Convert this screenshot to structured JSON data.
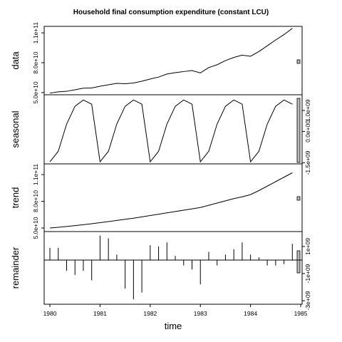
{
  "chart_data": {
    "type": "decomposition",
    "title": "Household final consumption expenditure (constant LCU)",
    "xlabel": "time",
    "x": [
      1980,
      1980.1667,
      1980.3333,
      1980.5,
      1980.6667,
      1980.8333,
      1981,
      1981.1667,
      1981.3333,
      1981.5,
      1981.6667,
      1981.8333,
      1982,
      1982.1667,
      1982.3333,
      1982.5,
      1982.6667,
      1982.8333,
      1983,
      1983.1667,
      1983.3333,
      1983.5,
      1983.6667,
      1983.8333,
      1984,
      1984.1667,
      1984.3333,
      1984.5,
      1984.6667,
      1984.8333
    ],
    "xlim": [
      1979.886,
      1985.028
    ],
    "xticks": [
      1980,
      1981,
      1982,
      1983,
      1984,
      1985
    ],
    "panels": [
      {
        "name": "data",
        "type": "line",
        "axis_side": "left",
        "values": [
          49450000000.0,
          50750000000.0,
          51250000000.0,
          52800000000.0,
          54400000000.0,
          54600000000.0,
          56350000000.0,
          57850000000.0,
          59250000000.0,
          58900000000.0,
          59600000000.0,
          61400000000.0,
          63650000000.0,
          65550000000.0,
          68650000000.0,
          70000000000.0,
          71100000000.0,
          72100000000.0,
          69750000000.0,
          75150000000.0,
          77950000000.0,
          82100000000.0,
          85300000000.0,
          87600000000.0,
          86450000000.0,
          91250000000.0,
          96950000000.0,
          102800000000.0,
          108200000000.0,
          114500000000.0
        ],
        "ylim": [
          47800000000.0,
          116500000000.0
        ],
        "yticks": [
          {
            "value": 50000000000.0,
            "label": "5.0e+10"
          },
          {
            "value": 80000000000.0,
            "label": "8.0e+10"
          },
          {
            "value": 110000000000.0,
            "label": "1.1e+11"
          }
        ]
      },
      {
        "name": "seasonal",
        "type": "line",
        "axis_side": "right",
        "values": [
          -1450000000.0,
          -950000000.0,
          350000000.0,
          1200000000.0,
          1500000000.0,
          1300000000.0,
          -1450000000.0,
          -950000000.0,
          350000000.0,
          1200000000.0,
          1500000000.0,
          1300000000.0,
          -1450000000.0,
          -950000000.0,
          350000000.0,
          1200000000.0,
          1500000000.0,
          1300000000.0,
          -1450000000.0,
          -950000000.0,
          350000000.0,
          1200000000.0,
          1500000000.0,
          1300000000.0,
          -1450000000.0,
          -950000000.0,
          350000000.0,
          1200000000.0,
          1500000000.0,
          1300000000.0
        ],
        "ylim": [
          -1550000000.0,
          1750000000.0
        ],
        "yticks": [
          {
            "value": -1500000000.0,
            "label": "-1.5e+09"
          },
          {
            "value": 0,
            "label": "0.0e+00"
          },
          {
            "value": 1000000000.0,
            "label": "1.0e+09"
          }
        ]
      },
      {
        "name": "trend",
        "type": "line",
        "axis_side": "left",
        "values": [
          50000000000.0,
          50800000000.0,
          51700000000.0,
          52700000000.0,
          53700000000.0,
          54800000000.0,
          56000000000.0,
          57200000000.0,
          58500000000.0,
          59800000000.0,
          61000000000.0,
          62500000000.0,
          64000000000.0,
          65500000000.0,
          67000000000.0,
          68500000000.0,
          70000000000.0,
          71500000000.0,
          73000000000.0,
          75500000000.0,
          78000000000.0,
          80500000000.0,
          83000000000.0,
          85000000000.0,
          87500000000.0,
          92000000000.0,
          97000000000.0,
          102000000000.0,
          107000000000.0,
          112000000000.0
        ],
        "ylim": [
          46000000000.0,
          122000000000.0
        ],
        "yticks": [
          {
            "value": 50000000000.0,
            "label": "5.0e+10"
          },
          {
            "value": 80000000000.0,
            "label": "8.0e+10"
          },
          {
            "value": 110000000000.0,
            "label": "1.1e+11"
          }
        ]
      },
      {
        "name": "remainder",
        "type": "bar",
        "axis_side": "right",
        "values": [
          900000000.0,
          900000000.0,
          -800000000.0,
          -1100000000.0,
          -800000000.0,
          -1500000000.0,
          1800000000.0,
          1600000000.0,
          400000000.0,
          -2100000000.0,
          -2900000000.0,
          -2400000000.0,
          1100000000.0,
          1000000000.0,
          1300000000.0,
          300000000.0,
          -400000000.0,
          -700000000.0,
          -1800000000.0,
          600000000.0,
          -400000000.0,
          400000000.0,
          800000000.0,
          1300000000.0,
          400000000.0,
          200000000.0,
          -400000000.0,
          -400000000.0,
          -300000000.0,
          1200000000.0
        ],
        "ylim": [
          -3260000000.0,
          2100000000.0
        ],
        "yticks": [
          {
            "value": -3000000000.0,
            "label": "-3e+09"
          },
          {
            "value": -1000000000.0,
            "label": "-1e+09"
          },
          {
            "value": 1000000000.0,
            "label": "1e+09"
          }
        ]
      }
    ]
  }
}
